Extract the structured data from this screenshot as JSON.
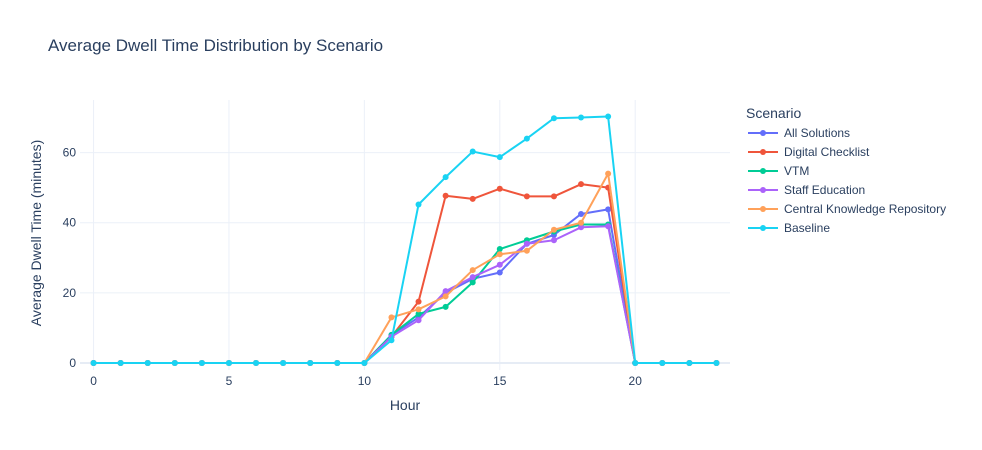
{
  "chart_data": {
    "type": "line",
    "title": "Average Dwell Time Distribution by Scenario",
    "xlabel": "Hour",
    "ylabel": "Average Dwell Time (minutes)",
    "xlim": [
      -0.5,
      23.5
    ],
    "ylim": [
      -2,
      75
    ],
    "xticks": [
      0,
      5,
      10,
      15,
      20
    ],
    "yticks": [
      0,
      20,
      40,
      60
    ],
    "grid": true,
    "legend_title": "Scenario",
    "legend_position": "right",
    "x": [
      0,
      1,
      2,
      3,
      4,
      5,
      6,
      7,
      8,
      9,
      10,
      11,
      12,
      13,
      14,
      15,
      16,
      17,
      18,
      19,
      20,
      21,
      22,
      23
    ],
    "series": [
      {
        "name": "All Solutions",
        "color": "#636efa",
        "values": [
          0,
          0,
          0,
          0,
          0,
          0,
          0,
          0,
          0,
          0,
          0,
          8,
          13,
          20,
          24,
          25.8,
          34,
          36.5,
          42.5,
          43.8,
          0,
          0,
          0,
          0
        ]
      },
      {
        "name": "Digital Checklist",
        "color": "#ef553b",
        "values": [
          0,
          0,
          0,
          0,
          0,
          0,
          0,
          0,
          0,
          0,
          0,
          7.5,
          17.5,
          47.7,
          46.8,
          49.7,
          47.5,
          47.5,
          51,
          50,
          0,
          0,
          0,
          0
        ]
      },
      {
        "name": "VTM",
        "color": "#00cc96",
        "values": [
          0,
          0,
          0,
          0,
          0,
          0,
          0,
          0,
          0,
          0,
          0,
          8,
          14,
          16,
          23,
          32.5,
          35,
          37.5,
          39.5,
          39.5,
          0,
          0,
          0,
          0
        ]
      },
      {
        "name": "Staff Education",
        "color": "#ab63fa",
        "values": [
          0,
          0,
          0,
          0,
          0,
          0,
          0,
          0,
          0,
          0,
          0,
          7.5,
          12.2,
          20.5,
          24.5,
          28,
          34,
          35,
          38.7,
          39,
          0,
          0,
          0,
          0
        ]
      },
      {
        "name": "Central Knowledge Repository",
        "color": "#ffa15a",
        "values": [
          0,
          0,
          0,
          0,
          0,
          0,
          0,
          0,
          0,
          0,
          0,
          13,
          15.3,
          19,
          26.5,
          31,
          32,
          38,
          40,
          54,
          0,
          0,
          0,
          0
        ]
      },
      {
        "name": "Baseline",
        "color": "#19d3f3",
        "values": [
          0,
          0,
          0,
          0,
          0,
          0,
          0,
          0,
          0,
          0,
          0,
          6.5,
          45.2,
          53,
          60.3,
          58.7,
          64,
          69.8,
          70,
          70.3,
          0,
          0,
          0,
          0
        ]
      }
    ]
  }
}
